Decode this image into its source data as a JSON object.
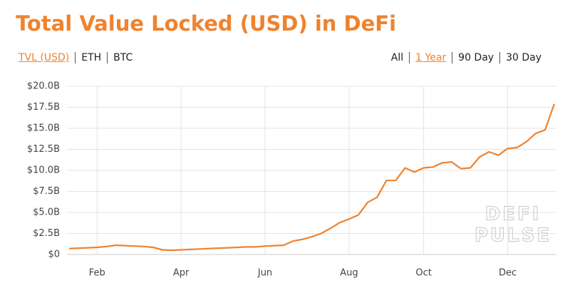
{
  "header": {
    "title": "Total Value Locked (USD) in DeFi",
    "metric_tabs": [
      "TVL (USD)",
      "ETH",
      "BTC"
    ],
    "active_metric": 0,
    "range_tabs": [
      "All",
      "1 Year",
      "90 Day",
      "30 Day"
    ],
    "active_range": 1
  },
  "chart_data": {
    "type": "line",
    "color": "#f0822d",
    "grid": true,
    "watermark": [
      "DEFI",
      "PULSE"
    ],
    "categories": [
      null,
      null,
      null,
      "Feb",
      null,
      null,
      null,
      null,
      null,
      null,
      null,
      null,
      "Apr",
      null,
      null,
      null,
      null,
      null,
      null,
      null,
      null,
      "Jun",
      null,
      null,
      null,
      null,
      null,
      null,
      null,
      null,
      "Aug",
      null,
      null,
      null,
      null,
      null,
      null,
      null,
      "Oct",
      null,
      null,
      null,
      null,
      null,
      null,
      null,
      null,
      "Dec",
      null,
      null,
      null,
      null,
      null
    ],
    "values": [
      0.7,
      0.75,
      0.8,
      0.85,
      0.95,
      1.1,
      1.05,
      1.0,
      0.95,
      0.85,
      0.55,
      0.5,
      0.55,
      0.6,
      0.65,
      0.7,
      0.75,
      0.8,
      0.85,
      0.9,
      0.9,
      1.0,
      1.05,
      1.1,
      1.6,
      1.8,
      2.1,
      2.5,
      3.1,
      3.8,
      4.2,
      4.7,
      6.2,
      6.8,
      8.8,
      8.8,
      10.3,
      9.8,
      10.3,
      10.4,
      10.9,
      11.0,
      10.2,
      10.3,
      11.6,
      12.2,
      11.8,
      12.6,
      12.7,
      13.4,
      14.4,
      14.8,
      17.9
    ],
    "ylim": [
      0,
      20
    ],
    "yticks": [
      {
        "value": 0,
        "label": "$0"
      },
      {
        "value": 2.5,
        "label": "$2.5B"
      },
      {
        "value": 5,
        "label": "$5.0B"
      },
      {
        "value": 7.5,
        "label": "$7.5B"
      },
      {
        "value": 10,
        "label": "$10.0B"
      },
      {
        "value": 12.5,
        "label": "$12.5B"
      },
      {
        "value": 15,
        "label": "$15.0B"
      },
      {
        "value": 17.5,
        "label": "$17.5B"
      },
      {
        "value": 20,
        "label": "$20.0B"
      }
    ]
  }
}
